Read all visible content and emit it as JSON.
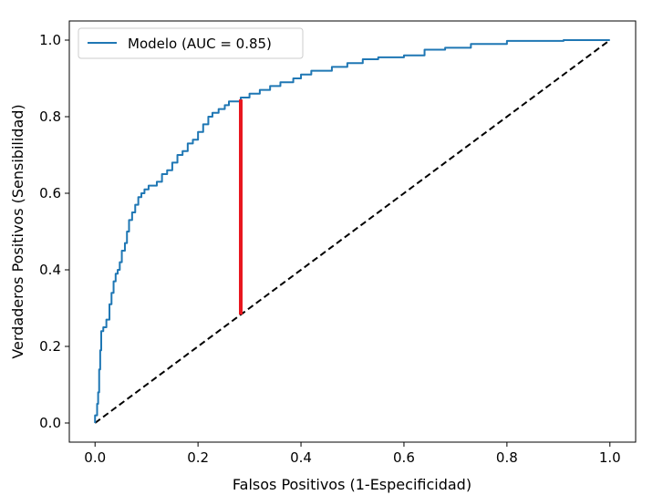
{
  "chart_data": {
    "type": "line",
    "title": "",
    "xlabel": "Falsos Positivos (1-Especificidad)",
    "ylabel": "Verdaderos Positivos (Sensibilidad)",
    "xlim": [
      -0.05,
      1.05
    ],
    "ylim": [
      -0.05,
      1.05
    ],
    "xticks": [
      0.0,
      0.2,
      0.4,
      0.6,
      0.8,
      1.0
    ],
    "yticks": [
      0.0,
      0.2,
      0.4,
      0.6,
      0.8,
      1.0
    ],
    "xtick_labels": [
      "0.0",
      "0.2",
      "0.4",
      "0.6",
      "0.8",
      "1.0"
    ],
    "ytick_labels": [
      "0.0",
      "0.2",
      "0.4",
      "0.6",
      "0.8",
      "1.0"
    ],
    "legend": {
      "position": "upper-left",
      "entries": [
        "Modelo (AUC = 0.85)"
      ]
    },
    "series": [
      {
        "name": "Modelo (AUC = 0.85)",
        "color": "#1f77b4",
        "style": "solid",
        "x": [
          0.0,
          0.0,
          0.004,
          0.004,
          0.006,
          0.006,
          0.008,
          0.008,
          0.01,
          0.01,
          0.012,
          0.012,
          0.016,
          0.016,
          0.022,
          0.022,
          0.028,
          0.028,
          0.032,
          0.032,
          0.036,
          0.036,
          0.04,
          0.04,
          0.044,
          0.044,
          0.048,
          0.048,
          0.052,
          0.052,
          0.058,
          0.058,
          0.062,
          0.062,
          0.066,
          0.066,
          0.072,
          0.072,
          0.078,
          0.078,
          0.084,
          0.084,
          0.09,
          0.09,
          0.096,
          0.096,
          0.104,
          0.104,
          0.12,
          0.12,
          0.13,
          0.13,
          0.14,
          0.14,
          0.15,
          0.15,
          0.16,
          0.16,
          0.17,
          0.17,
          0.18,
          0.18,
          0.19,
          0.19,
          0.2,
          0.2,
          0.21,
          0.21,
          0.22,
          0.22,
          0.228,
          0.228,
          0.24,
          0.24,
          0.252,
          0.252,
          0.26,
          0.26,
          0.283,
          0.283,
          0.3,
          0.3,
          0.32,
          0.32,
          0.34,
          0.34,
          0.36,
          0.36,
          0.385,
          0.385,
          0.4,
          0.4,
          0.42,
          0.42,
          0.46,
          0.46,
          0.49,
          0.49,
          0.52,
          0.52,
          0.55,
          0.55,
          0.6,
          0.6,
          0.64,
          0.64,
          0.68,
          0.68,
          0.73,
          0.73,
          0.8,
          0.8,
          0.91,
          0.91,
          1.0
        ],
        "y": [
          0.0,
          0.02,
          0.02,
          0.05,
          0.05,
          0.08,
          0.08,
          0.14,
          0.14,
          0.19,
          0.19,
          0.24,
          0.24,
          0.25,
          0.25,
          0.27,
          0.27,
          0.31,
          0.31,
          0.34,
          0.34,
          0.37,
          0.37,
          0.39,
          0.39,
          0.4,
          0.4,
          0.42,
          0.42,
          0.45,
          0.45,
          0.47,
          0.47,
          0.5,
          0.5,
          0.53,
          0.53,
          0.55,
          0.55,
          0.57,
          0.57,
          0.59,
          0.59,
          0.6,
          0.6,
          0.61,
          0.61,
          0.62,
          0.62,
          0.63,
          0.63,
          0.65,
          0.65,
          0.66,
          0.66,
          0.68,
          0.68,
          0.7,
          0.7,
          0.71,
          0.71,
          0.73,
          0.73,
          0.74,
          0.74,
          0.76,
          0.76,
          0.78,
          0.78,
          0.8,
          0.8,
          0.81,
          0.81,
          0.82,
          0.82,
          0.83,
          0.83,
          0.84,
          0.84,
          0.85,
          0.85,
          0.86,
          0.86,
          0.87,
          0.87,
          0.88,
          0.88,
          0.89,
          0.89,
          0.9,
          0.9,
          0.91,
          0.91,
          0.92,
          0.92,
          0.93,
          0.93,
          0.94,
          0.94,
          0.95,
          0.95,
          0.955,
          0.955,
          0.96,
          0.96,
          0.975,
          0.975,
          0.98,
          0.98,
          0.99,
          0.99,
          0.998,
          0.998,
          1.0,
          1.0
        ]
      },
      {
        "name": "",
        "color": "#000000",
        "style": "dashed",
        "x": [
          0.0,
          1.0
        ],
        "y": [
          0.0,
          1.0
        ]
      }
    ],
    "annotations": [
      {
        "type": "vertical-segment",
        "color": "#e8161e",
        "x": 0.283,
        "y_start": 0.283,
        "y_end": 0.845
      }
    ]
  }
}
